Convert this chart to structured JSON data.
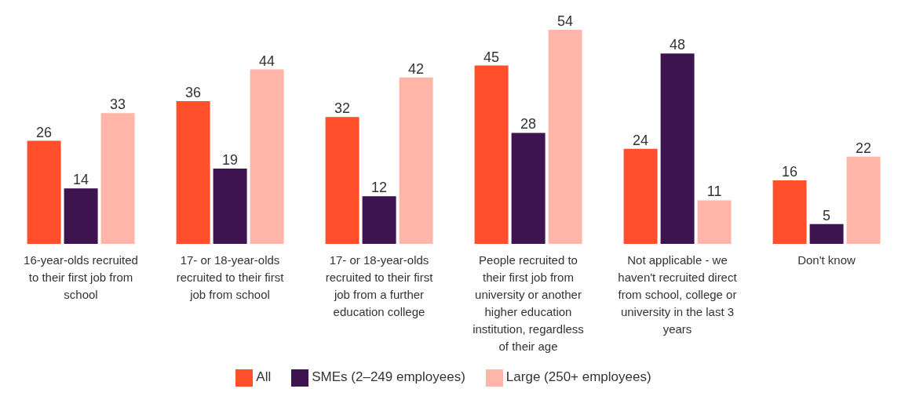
{
  "chart_data": {
    "type": "bar",
    "categories": [
      "16-year-olds recruited to their first job from school",
      "17- or 18-year-olds recruited to their first job from school",
      "17- or 18-year-olds recruited to their first job from a further education college",
      "People recruited to their first job from university or another higher education institution, regardless of their age",
      "Not applicable - we haven't recruited direct from school, college or university in the last 3 years",
      "Don't know"
    ],
    "series": [
      {
        "name": "All",
        "color": "#ff4f2b",
        "values": [
          26,
          36,
          32,
          45,
          24,
          16
        ]
      },
      {
        "name": "SMEs (2–249 employees)",
        "color": "#3d1450",
        "values": [
          14,
          19,
          12,
          28,
          48,
          5
        ]
      },
      {
        "name": "Large (250+ employees)",
        "color": "#ffb5a8",
        "values": [
          33,
          44,
          42,
          54,
          11,
          22
        ]
      }
    ],
    "data_labels": true,
    "legend": "bottom",
    "grid": false
  }
}
